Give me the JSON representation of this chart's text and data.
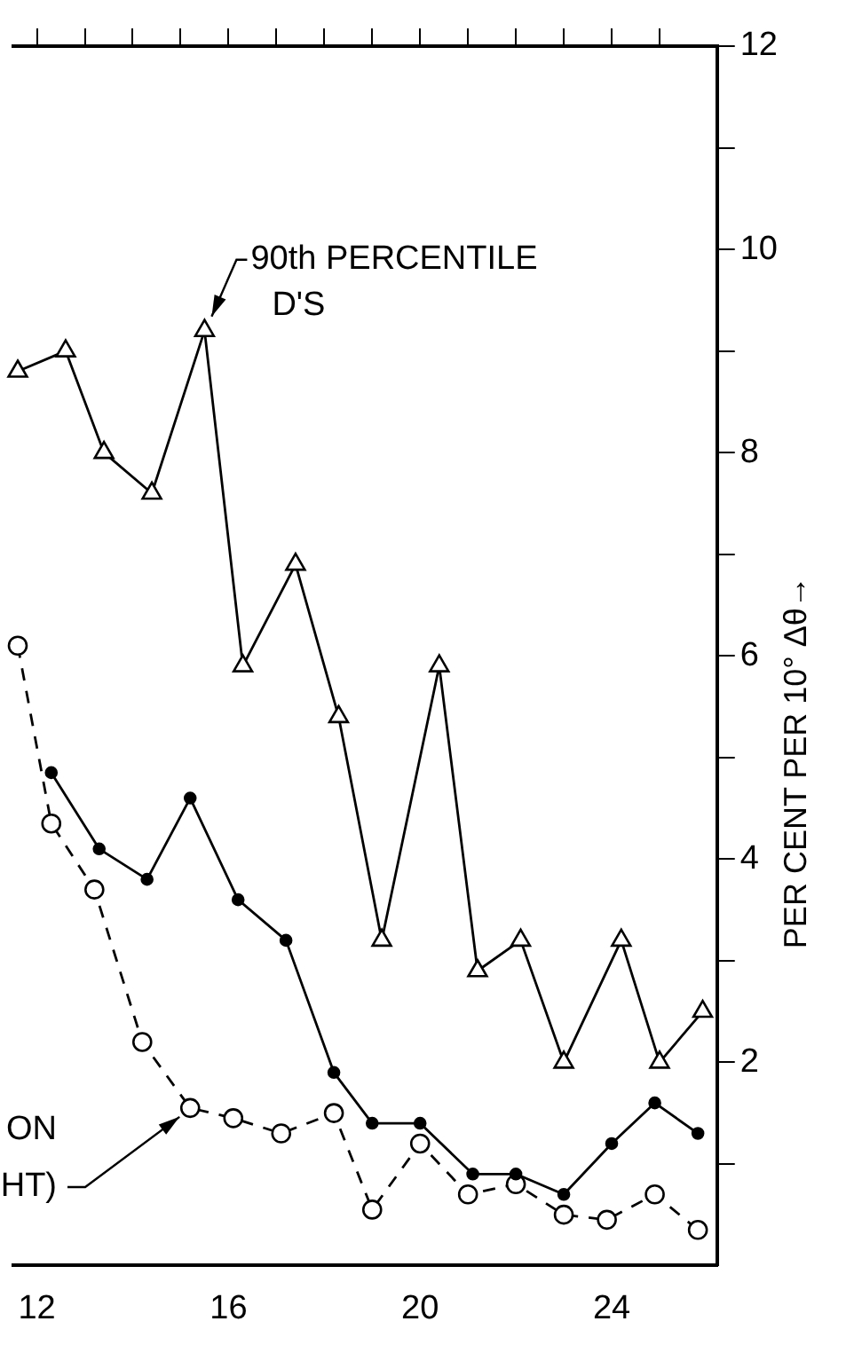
{
  "chart_data": {
    "type": "line",
    "ylabel": "PER CENT PER 10° Δθ→",
    "annotations": [
      {
        "text": "90th PERCENTILE D'S",
        "x": 15.5,
        "y": 9.2
      },
      "ON",
      {
        "text": "HT)",
        "x": 15.2,
        "y": 1.55
      }
    ],
    "xlim": [
      11.5,
      26.2
    ],
    "xticks": [
      {
        "value": 12,
        "label": "12"
      },
      {
        "value": 13,
        "label": null
      },
      {
        "value": 14,
        "label": null
      },
      {
        "value": 15,
        "label": null
      },
      {
        "value": 16,
        "label": "16"
      },
      {
        "value": 17,
        "label": null
      },
      {
        "value": 18,
        "label": null
      },
      {
        "value": 19,
        "label": null
      },
      {
        "value": 20,
        "label": "20"
      },
      {
        "value": 21,
        "label": null
      },
      {
        "value": 22,
        "label": null
      },
      {
        "value": 23,
        "label": null
      },
      {
        "value": 24,
        "label": "24"
      },
      {
        "value": 25,
        "label": null
      }
    ],
    "ylim": [
      0,
      12
    ],
    "yticks": [
      {
        "value": 1,
        "label": null
      },
      2,
      {
        "value": 3,
        "label": null
      },
      4,
      {
        "value": 5,
        "label": null
      },
      6,
      {
        "value": 7,
        "label": null
      },
      8,
      {
        "value": 9,
        "label": null
      },
      10,
      {
        "value": 11,
        "label": null
      },
      12
    ],
    "grid": false,
    "legend": false,
    "line_style": "solid",
    "series": [
      {
        "color": "#000000",
        "marker": "triangle",
        "x": [
          11.6,
          12.6,
          13.4,
          14.4,
          15.5,
          16.3,
          17.4,
          18.3,
          19.2,
          20.4,
          21.2,
          22.1,
          23.0,
          24.2,
          25.0,
          25.9
        ],
        "values": [
          8.8,
          9.0,
          8.0,
          7.6,
          9.2,
          5.9,
          6.9,
          5.4,
          3.2,
          5.9,
          2.9,
          3.2,
          2.0,
          3.2,
          2.0,
          2.5
        ]
      },
      {
        "color": "#000000",
        "marker": "circle",
        "x": [
          12.3,
          13.3,
          14.3,
          15.2,
          16.2,
          17.2,
          18.2,
          19.0,
          20.0,
          21.1,
          22.0,
          23.0,
          24.0,
          24.9,
          25.8
        ],
        "values": [
          4.85,
          4.1,
          3.8,
          4.6,
          3.6,
          3.2,
          1.9,
          1.4,
          1.4,
          0.9,
          0.9,
          0.7,
          1.2,
          1.6,
          1.3
        ]
      },
      {
        "color": "#000000",
        "marker": "circle",
        "line_style": "dashed",
        "x": [
          11.6,
          12.3,
          13.2,
          14.2,
          15.2,
          16.1,
          17.1,
          18.2,
          19.0,
          20.0,
          21.0,
          22.0,
          23.0,
          23.9,
          24.9,
          25.8
        ],
        "values": [
          6.1,
          4.35,
          3.7,
          2.2,
          1.55,
          1.45,
          1.3,
          1.5,
          0.55,
          1.2,
          0.7,
          0.8,
          0.5,
          0.45,
          0.7,
          0.35
        ]
      }
    ]
  }
}
